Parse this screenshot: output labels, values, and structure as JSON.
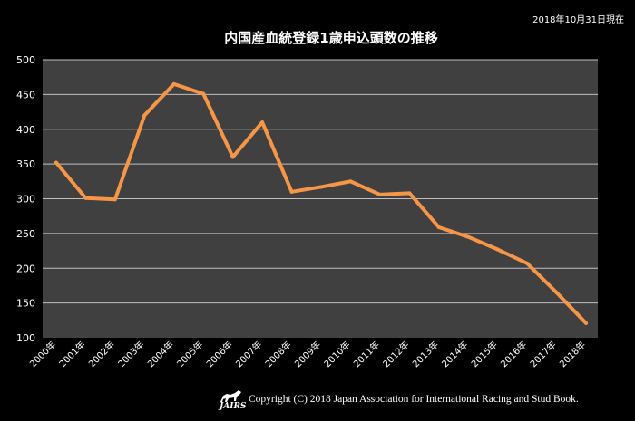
{
  "as_of": "2018年10月31日現在",
  "copyright": "Copyright (C) 2018 Japan Association for International Racing and Stud Book.",
  "logo_text": "JAIRS",
  "colors": {
    "line": "#f79646",
    "plot_bg": "#404040",
    "grid": "#bfbfbf",
    "text": "#ffffff",
    "background": "#000000"
  },
  "chart_data": {
    "type": "line",
    "title": "内国産血統登録1歳申込頭数の推移",
    "xlabel": "",
    "ylabel": "",
    "categories": [
      "2000年",
      "2001年",
      "2002年",
      "2003年",
      "2004年",
      "2005年",
      "2006年",
      "2007年",
      "2008年",
      "2009年",
      "2010年",
      "2011年",
      "2012年",
      "2013年",
      "2014年",
      "2015年",
      "2016年",
      "2017年",
      "2018年"
    ],
    "values": [
      352,
      301,
      299,
      420,
      465,
      451,
      360,
      410,
      310,
      317,
      325,
      306,
      308,
      259,
      245,
      227,
      207,
      165,
      121
    ],
    "ylim": [
      100,
      500
    ],
    "yticks": [
      100,
      150,
      200,
      250,
      300,
      350,
      400,
      450,
      500
    ],
    "grid": true,
    "legend": "none"
  }
}
